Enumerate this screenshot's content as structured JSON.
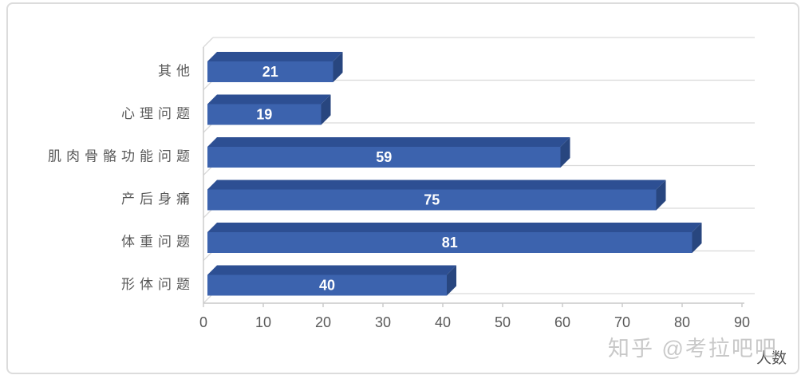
{
  "watermark": {
    "text": "知乎 @考拉吧吧"
  },
  "chart_data": {
    "type": "bar",
    "orientation": "horizontal",
    "style": "3d",
    "title": "",
    "xlabel": "人数",
    "ylabel": "",
    "categories": [
      "其他",
      "心理问题",
      "肌肉骨骼功能问题",
      "产后身痛",
      "体重问题",
      "形体问题"
    ],
    "values": [
      21,
      19,
      59,
      75,
      81,
      40
    ],
    "xlim": [
      0,
      90
    ],
    "xticks": [
      0,
      10,
      20,
      30,
      40,
      50,
      60,
      70,
      80,
      90
    ],
    "grid": true,
    "legend": false,
    "data_labels": true
  },
  "colors": {
    "bar_front": "#3c63ae",
    "bar_top": "#2d4f93",
    "bar_side": "#28467f",
    "grid_line": "#d9d9d9",
    "axis_line": "#c9c9c9",
    "tick_text": "#595959",
    "category_text": "#595959",
    "value_text": "#ffffff",
    "axis_title_text": "#4f4f4f",
    "watermark_text": "#c6c6c6",
    "frame_border": "#dcdcdc",
    "background": "#ffffff"
  }
}
